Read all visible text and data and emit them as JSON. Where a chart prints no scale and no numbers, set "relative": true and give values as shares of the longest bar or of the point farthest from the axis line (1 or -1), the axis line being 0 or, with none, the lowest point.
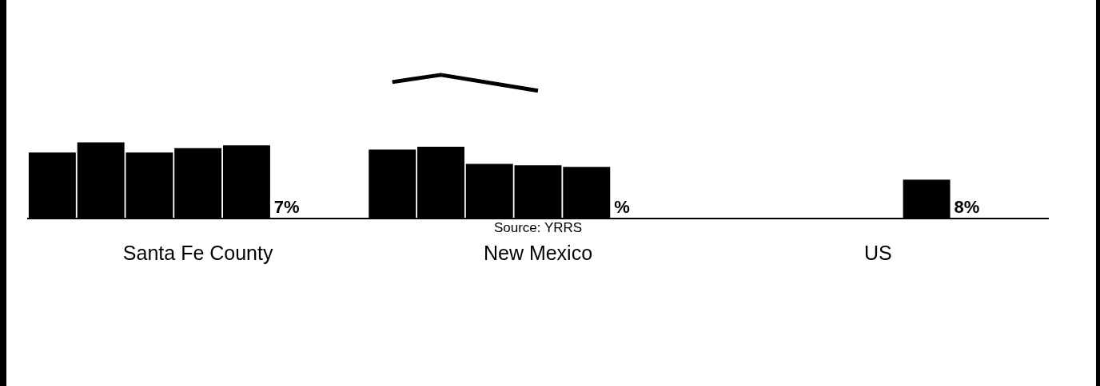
{
  "chart_data": {
    "type": "bar",
    "relative": true,
    "legend": false,
    "grid": false,
    "categories": [
      null,
      null,
      null,
      "Santa Fe County",
      null,
      null,
      null,
      null,
      null,
      null,
      "New Mexico",
      null,
      null,
      null,
      null,
      null,
      null,
      "US",
      null,
      null,
      null
    ],
    "series": [
      {
        "color": "#000000",
        "values": [
          0.46,
          0.53,
          0.46,
          0.49,
          0.51,
          null,
          null,
          0.48,
          0.5,
          0.38,
          0.37,
          0.36,
          null,
          null,
          null,
          null,
          null,
          null,
          0.27,
          null,
          null
        ]
      },
      {
        "type": "line",
        "color": "#000000",
        "marker": "none",
        "values": [
          null,
          null,
          null,
          null,
          null,
          null,
          null,
          0.95,
          1,
          null,
          0.89,
          null,
          null,
          null,
          null,
          null,
          null,
          null,
          null,
          null,
          null
        ]
      }
    ],
    "annotations": [
      "7%",
      "%",
      "8%",
      "Source: YRRS"
    ]
  }
}
